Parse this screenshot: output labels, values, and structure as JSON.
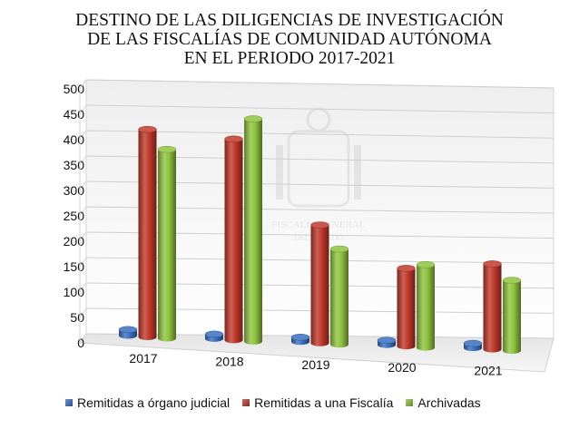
{
  "title_lines": [
    "DESTINO DE LAS DILIGENCIAS DE INVESTIGACIÓN",
    "DE LAS FISCALÍAS DE COMUNIDAD AUTÓNOMA",
    "EN EL PERIODO 2017-2021"
  ],
  "watermark_text": [
    "FISCALÍA GENERAL",
    "DEL ESTADO"
  ],
  "chart_data": {
    "type": "bar",
    "title": "DESTINO DE LAS DILIGENCIAS DE INVESTIGACIÓN DE LAS FISCALÍAS DE COMUNIDAD AUTÓNOMA EN EL PERIODO 2017-2021",
    "categories": [
      "2017",
      "2018",
      "2019",
      "2020",
      "2021"
    ],
    "series": [
      {
        "name": "Remitidas a órgano judicial",
        "values": [
          12,
          6,
          1,
          2,
          4
        ],
        "color": "#3a6fc0"
      },
      {
        "name": "Remitidas a una Fiscalía",
        "values": [
          413,
          400,
          235,
          155,
          170
        ],
        "color": "#c0392b"
      },
      {
        "name": "Archivadas",
        "values": [
          376,
          443,
          190,
          165,
          140
        ],
        "color": "#8fc33f"
      }
    ],
    "ylim": [
      0,
      500
    ],
    "yticks": [
      "0",
      "50",
      "100",
      "150",
      "200",
      "250",
      "300",
      "350",
      "400",
      "450",
      "500"
    ],
    "grid": true,
    "legend_position": "bottom",
    "style": "3d-cylinder"
  }
}
